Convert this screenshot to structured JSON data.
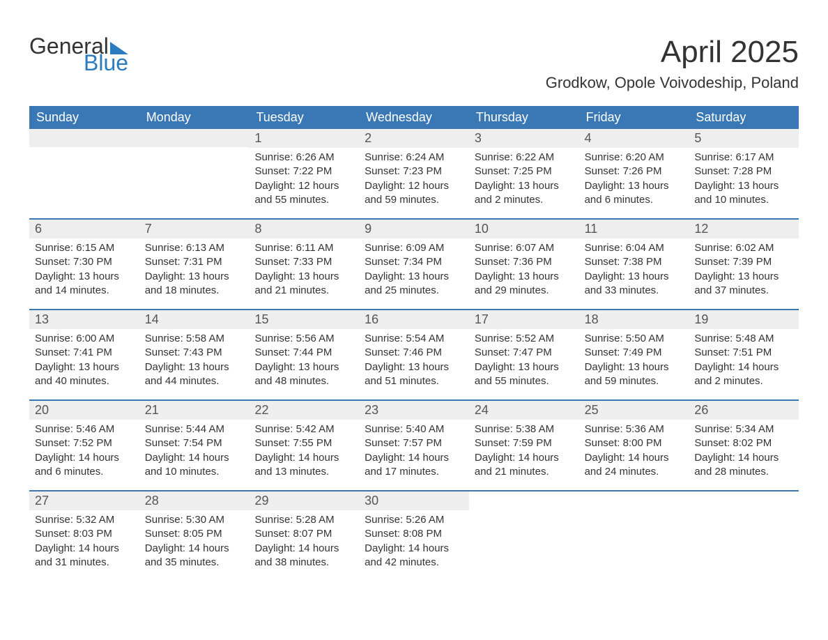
{
  "logo": {
    "general": "General",
    "blue": "Blue"
  },
  "title": "April 2025",
  "location": "Grodkow, Opole Voivodeship, Poland",
  "colors": {
    "header_bg": "#3a78b5",
    "header_text": "#ffffff",
    "daynum_bg": "#eeeeee",
    "border": "#3a78b5",
    "logo_blue": "#2b7bbf",
    "text": "#333333"
  },
  "day_names": [
    "Sunday",
    "Monday",
    "Tuesday",
    "Wednesday",
    "Thursday",
    "Friday",
    "Saturday"
  ],
  "weeks": [
    [
      {
        "n": "",
        "sr": "",
        "ss": "",
        "dl": ""
      },
      {
        "n": "",
        "sr": "",
        "ss": "",
        "dl": ""
      },
      {
        "n": "1",
        "sr": "Sunrise: 6:26 AM",
        "ss": "Sunset: 7:22 PM",
        "dl": "Daylight: 12 hours and 55 minutes."
      },
      {
        "n": "2",
        "sr": "Sunrise: 6:24 AM",
        "ss": "Sunset: 7:23 PM",
        "dl": "Daylight: 12 hours and 59 minutes."
      },
      {
        "n": "3",
        "sr": "Sunrise: 6:22 AM",
        "ss": "Sunset: 7:25 PM",
        "dl": "Daylight: 13 hours and 2 minutes."
      },
      {
        "n": "4",
        "sr": "Sunrise: 6:20 AM",
        "ss": "Sunset: 7:26 PM",
        "dl": "Daylight: 13 hours and 6 minutes."
      },
      {
        "n": "5",
        "sr": "Sunrise: 6:17 AM",
        "ss": "Sunset: 7:28 PM",
        "dl": "Daylight: 13 hours and 10 minutes."
      }
    ],
    [
      {
        "n": "6",
        "sr": "Sunrise: 6:15 AM",
        "ss": "Sunset: 7:30 PM",
        "dl": "Daylight: 13 hours and 14 minutes."
      },
      {
        "n": "7",
        "sr": "Sunrise: 6:13 AM",
        "ss": "Sunset: 7:31 PM",
        "dl": "Daylight: 13 hours and 18 minutes."
      },
      {
        "n": "8",
        "sr": "Sunrise: 6:11 AM",
        "ss": "Sunset: 7:33 PM",
        "dl": "Daylight: 13 hours and 21 minutes."
      },
      {
        "n": "9",
        "sr": "Sunrise: 6:09 AM",
        "ss": "Sunset: 7:34 PM",
        "dl": "Daylight: 13 hours and 25 minutes."
      },
      {
        "n": "10",
        "sr": "Sunrise: 6:07 AM",
        "ss": "Sunset: 7:36 PM",
        "dl": "Daylight: 13 hours and 29 minutes."
      },
      {
        "n": "11",
        "sr": "Sunrise: 6:04 AM",
        "ss": "Sunset: 7:38 PM",
        "dl": "Daylight: 13 hours and 33 minutes."
      },
      {
        "n": "12",
        "sr": "Sunrise: 6:02 AM",
        "ss": "Sunset: 7:39 PM",
        "dl": "Daylight: 13 hours and 37 minutes."
      }
    ],
    [
      {
        "n": "13",
        "sr": "Sunrise: 6:00 AM",
        "ss": "Sunset: 7:41 PM",
        "dl": "Daylight: 13 hours and 40 minutes."
      },
      {
        "n": "14",
        "sr": "Sunrise: 5:58 AM",
        "ss": "Sunset: 7:43 PM",
        "dl": "Daylight: 13 hours and 44 minutes."
      },
      {
        "n": "15",
        "sr": "Sunrise: 5:56 AM",
        "ss": "Sunset: 7:44 PM",
        "dl": "Daylight: 13 hours and 48 minutes."
      },
      {
        "n": "16",
        "sr": "Sunrise: 5:54 AM",
        "ss": "Sunset: 7:46 PM",
        "dl": "Daylight: 13 hours and 51 minutes."
      },
      {
        "n": "17",
        "sr": "Sunrise: 5:52 AM",
        "ss": "Sunset: 7:47 PM",
        "dl": "Daylight: 13 hours and 55 minutes."
      },
      {
        "n": "18",
        "sr": "Sunrise: 5:50 AM",
        "ss": "Sunset: 7:49 PM",
        "dl": "Daylight: 13 hours and 59 minutes."
      },
      {
        "n": "19",
        "sr": "Sunrise: 5:48 AM",
        "ss": "Sunset: 7:51 PM",
        "dl": "Daylight: 14 hours and 2 minutes."
      }
    ],
    [
      {
        "n": "20",
        "sr": "Sunrise: 5:46 AM",
        "ss": "Sunset: 7:52 PM",
        "dl": "Daylight: 14 hours and 6 minutes."
      },
      {
        "n": "21",
        "sr": "Sunrise: 5:44 AM",
        "ss": "Sunset: 7:54 PM",
        "dl": "Daylight: 14 hours and 10 minutes."
      },
      {
        "n": "22",
        "sr": "Sunrise: 5:42 AM",
        "ss": "Sunset: 7:55 PM",
        "dl": "Daylight: 14 hours and 13 minutes."
      },
      {
        "n": "23",
        "sr": "Sunrise: 5:40 AM",
        "ss": "Sunset: 7:57 PM",
        "dl": "Daylight: 14 hours and 17 minutes."
      },
      {
        "n": "24",
        "sr": "Sunrise: 5:38 AM",
        "ss": "Sunset: 7:59 PM",
        "dl": "Daylight: 14 hours and 21 minutes."
      },
      {
        "n": "25",
        "sr": "Sunrise: 5:36 AM",
        "ss": "Sunset: 8:00 PM",
        "dl": "Daylight: 14 hours and 24 minutes."
      },
      {
        "n": "26",
        "sr": "Sunrise: 5:34 AM",
        "ss": "Sunset: 8:02 PM",
        "dl": "Daylight: 14 hours and 28 minutes."
      }
    ],
    [
      {
        "n": "27",
        "sr": "Sunrise: 5:32 AM",
        "ss": "Sunset: 8:03 PM",
        "dl": "Daylight: 14 hours and 31 minutes."
      },
      {
        "n": "28",
        "sr": "Sunrise: 5:30 AM",
        "ss": "Sunset: 8:05 PM",
        "dl": "Daylight: 14 hours and 35 minutes."
      },
      {
        "n": "29",
        "sr": "Sunrise: 5:28 AM",
        "ss": "Sunset: 8:07 PM",
        "dl": "Daylight: 14 hours and 38 minutes."
      },
      {
        "n": "30",
        "sr": "Sunrise: 5:26 AM",
        "ss": "Sunset: 8:08 PM",
        "dl": "Daylight: 14 hours and 42 minutes."
      },
      {
        "n": "",
        "sr": "",
        "ss": "",
        "dl": ""
      },
      {
        "n": "",
        "sr": "",
        "ss": "",
        "dl": ""
      },
      {
        "n": "",
        "sr": "",
        "ss": "",
        "dl": ""
      }
    ]
  ]
}
